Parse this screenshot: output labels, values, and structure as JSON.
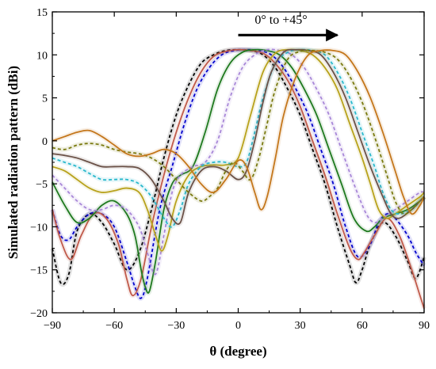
{
  "chart_data": {
    "type": "line",
    "title": "",
    "xlabel": "θ (degree)",
    "ylabel": "Simulated radiation pattern (dBi)",
    "xlim": [
      -90,
      90
    ],
    "ylim": [
      -20,
      15
    ],
    "xticks": [
      -90,
      -60,
      -30,
      0,
      30,
      60,
      90
    ],
    "yticks": [
      -20,
      -15,
      -10,
      -5,
      0,
      5,
      10,
      15
    ],
    "xtick_labels": [
      "−90",
      "−60",
      "−30",
      "0",
      "30",
      "60",
      "90"
    ],
    "ytick_labels": [
      "−20",
      "−15",
      "−10",
      "−5",
      "0",
      "5",
      "10",
      "15"
    ],
    "grid": false,
    "legend": "none",
    "annotation": {
      "text": "0° to +45°",
      "arrow_from": [
        0,
        12.3
      ],
      "arrow_to": [
        48,
        12.3
      ],
      "text_at": [
        8,
        13.6
      ]
    },
    "series": [
      {
        "color": "#000000",
        "dash": "dashed",
        "x": [
          -90,
          -86,
          -82,
          -78,
          -72,
          -66,
          -60,
          -54,
          -48,
          -42,
          -36,
          -30,
          -24,
          -18,
          -12,
          -6,
          0,
          6,
          12,
          18,
          24,
          30,
          36,
          42,
          48,
          54,
          57,
          60,
          64,
          70,
          76,
          82,
          86,
          90
        ],
        "y": [
          -12.5,
          -16.5,
          -15.5,
          -10.5,
          -8.5,
          -9.5,
          -12,
          -15,
          -13,
          -8,
          -2,
          3,
          6.5,
          9,
          10,
          10.5,
          10.6,
          10.5,
          10,
          8.5,
          6,
          3,
          -1,
          -5,
          -10,
          -14.5,
          -16.5,
          -15,
          -12,
          -9.5,
          -11,
          -14,
          -16,
          -13.5
        ]
      },
      {
        "color": "#0000cc",
        "dash": "dashed",
        "x": [
          -90,
          -86,
          -82,
          -78,
          -72,
          -66,
          -60,
          -54,
          -50,
          -47,
          -44,
          -38,
          -32,
          -26,
          -20,
          -14,
          -8,
          -2,
          4,
          10,
          16,
          22,
          28,
          34,
          40,
          46,
          52,
          58,
          64,
          68,
          72,
          76,
          82,
          86,
          90
        ],
        "y": [
          -8,
          -11,
          -11.5,
          -10,
          -8.5,
          -8.5,
          -10,
          -14,
          -17,
          -18.3,
          -16,
          -8,
          -3,
          2,
          6,
          8.5,
          10,
          10.5,
          10.6,
          10.5,
          10,
          8.5,
          6,
          3,
          -1,
          -5,
          -10,
          -13.5,
          -12,
          -9.5,
          -8.5,
          -9,
          -11,
          -13,
          -14.5
        ]
      },
      {
        "color": "#c05a4a",
        "dash": "solid",
        "x": [
          -90,
          -86,
          -81,
          -76,
          -70,
          -64,
          -58,
          -54,
          -51,
          -47,
          -42,
          -36,
          -30,
          -24,
          -18,
          -12,
          -6,
          0,
          6,
          12,
          18,
          24,
          30,
          36,
          42,
          48,
          54,
          58,
          61,
          66,
          72,
          78,
          84,
          88,
          90
        ],
        "y": [
          -8,
          -11.5,
          -13.8,
          -11,
          -8.5,
          -9,
          -12,
          -16,
          -18,
          -16,
          -10,
          -4,
          1,
          5,
          8,
          9.8,
          10.4,
          10.6,
          10.5,
          10.2,
          9,
          7,
          4,
          0,
          -4,
          -8.5,
          -12.5,
          -13.8,
          -13,
          -11,
          -9,
          -11,
          -15,
          -18,
          -19.5
        ]
      },
      {
        "color": "#1f7a1f",
        "dash": "solid",
        "x": [
          -90,
          -84,
          -78,
          -72,
          -66,
          -60,
          -54,
          -50,
          -47,
          -45,
          -43,
          -40,
          -36,
          -32,
          -28,
          -22,
          -16,
          -10,
          -4,
          2,
          8,
          14,
          20,
          26,
          32,
          38,
          44,
          50,
          56,
          62,
          66,
          70,
          76,
          82,
          88,
          90
        ],
        "y": [
          -4.8,
          -7.5,
          -9.5,
          -9,
          -7.5,
          -7,
          -8.5,
          -11,
          -15,
          -17,
          -17.5,
          -14,
          -8,
          -5,
          -4,
          -3,
          1,
          6,
          9,
          10.3,
          10.6,
          10.5,
          10,
          8.5,
          6,
          3,
          -1,
          -5,
          -9,
          -10.5,
          -10,
          -9,
          -8.5,
          -8,
          -7,
          -6.5
        ]
      },
      {
        "color": "#a887d8",
        "dash": "dashed",
        "x": [
          -90,
          -84,
          -78,
          -72,
          -66,
          -60,
          -54,
          -48,
          -44,
          -40,
          -36,
          -32,
          -28,
          -22,
          -16,
          -10,
          -4,
          2,
          8,
          14,
          20,
          26,
          32,
          38,
          44,
          50,
          56,
          62,
          66,
          70,
          76,
          82,
          88,
          90
        ],
        "y": [
          -4,
          -5.5,
          -7,
          -8,
          -8,
          -7.5,
          -8,
          -10,
          -13,
          -15.5,
          -11,
          -6,
          -4,
          -3,
          -2.5,
          0,
          5,
          8.5,
          10,
          10.6,
          10.5,
          10,
          8.5,
          6,
          3,
          -1,
          -5,
          -8.5,
          -9.5,
          -9,
          -8,
          -7,
          -6,
          -6
        ]
      },
      {
        "color": "#b8a21c",
        "dash": "solid",
        "x": [
          -90,
          -84,
          -78,
          -72,
          -66,
          -60,
          -54,
          -48,
          -44,
          -40,
          -37,
          -34,
          -30,
          -24,
          -18,
          -12,
          -6,
          0,
          6,
          12,
          18,
          24,
          30,
          36,
          42,
          48,
          54,
          60,
          64,
          68,
          72,
          76,
          82,
          88,
          90
        ],
        "y": [
          -3,
          -3.5,
          -4.5,
          -5.5,
          -6,
          -5.8,
          -5.5,
          -6,
          -8,
          -11,
          -12.8,
          -11,
          -7,
          -4,
          -3,
          -2.8,
          -2.8,
          -2,
          3,
          8,
          10.2,
          10.6,
          10.5,
          10,
          8.5,
          6,
          2,
          -2,
          -5,
          -8,
          -9,
          -8.5,
          -7.5,
          -6.5,
          -6
        ]
      },
      {
        "color": "#29b8cc",
        "dash": "dashed",
        "x": [
          -90,
          -84,
          -78,
          -72,
          -66,
          -60,
          -54,
          -48,
          -42,
          -36,
          -32,
          -28,
          -24,
          -18,
          -12,
          -6,
          0,
          4,
          8,
          12,
          18,
          24,
          30,
          36,
          42,
          48,
          54,
          60,
          66,
          70,
          74,
          78,
          84,
          88,
          90
        ],
        "y": [
          -2,
          -2.5,
          -3,
          -3.8,
          -4.5,
          -4.5,
          -4.5,
          -5,
          -6.5,
          -9,
          -10,
          -8,
          -5,
          -3,
          -2.5,
          -2.5,
          -3,
          -2.5,
          1,
          5,
          9,
          10.3,
          10.6,
          10.5,
          10,
          8,
          5,
          1,
          -3,
          -6,
          -8,
          -8.5,
          -8,
          -7,
          -6.5
        ]
      },
      {
        "color": "#6b5248",
        "dash": "solid",
        "x": [
          -90,
          -84,
          -78,
          -72,
          -66,
          -60,
          -54,
          -48,
          -42,
          -36,
          -32,
          -28,
          -24,
          -18,
          -12,
          -6,
          0,
          4,
          8,
          12,
          16,
          22,
          28,
          34,
          40,
          46,
          52,
          58,
          64,
          70,
          74,
          78,
          84,
          88,
          90
        ],
        "y": [
          -1.5,
          -1.7,
          -2,
          -2.5,
          -3,
          -3,
          -3,
          -3.2,
          -4.5,
          -7,
          -9,
          -9.5,
          -6,
          -3.5,
          -3,
          -3.5,
          -4.5,
          -3.5,
          0,
          4.5,
          8,
          10.3,
          10.6,
          10.5,
          10,
          8,
          5,
          1,
          -3,
          -6.5,
          -8.5,
          -9,
          -8,
          -7,
          -6.5
        ]
      },
      {
        "color": "#7a7a10",
        "dash": "dashed",
        "x": [
          -90,
          -84,
          -78,
          -72,
          -66,
          -60,
          -54,
          -48,
          -42,
          -36,
          -30,
          -24,
          -18,
          -14,
          -10,
          -6,
          -2,
          2,
          6,
          10,
          14,
          18,
          24,
          30,
          36,
          42,
          48,
          54,
          60,
          66,
          72,
          76,
          80,
          84,
          88,
          90
        ],
        "y": [
          -0.8,
          -1,
          -0.5,
          -0.3,
          -0.5,
          -1,
          -1.3,
          -1.5,
          -2,
          -3,
          -4.5,
          -6,
          -7,
          -6.5,
          -5.5,
          -3.5,
          -2.5,
          -3.5,
          -4.5,
          -2,
          2,
          6,
          9.5,
          10.4,
          10.5,
          10.3,
          9.5,
          7.5,
          4.5,
          0.5,
          -4,
          -7,
          -8.5,
          -8,
          -7,
          -6.5
        ]
      },
      {
        "color": "#c4771c",
        "dash": "solid",
        "x": [
          -90,
          -84,
          -78,
          -72,
          -66,
          -60,
          -54,
          -48,
          -42,
          -36,
          -30,
          -24,
          -18,
          -12,
          -6,
          0,
          4,
          8,
          11,
          14,
          18,
          22,
          28,
          34,
          40,
          46,
          52,
          58,
          64,
          70,
          76,
          80,
          84,
          88,
          90
        ],
        "y": [
          0,
          0.5,
          1,
          1.2,
          0.5,
          -0.5,
          -1.5,
          -1.8,
          -1.5,
          -1,
          -1.5,
          -3,
          -5,
          -6,
          -4.5,
          -2.3,
          -3,
          -6,
          -8,
          -6.5,
          -2,
          3,
          7.5,
          10,
          10.5,
          10.5,
          10,
          8,
          5,
          1,
          -3.5,
          -6.5,
          -8.5,
          -7.5,
          -6.5
        ]
      }
    ]
  }
}
